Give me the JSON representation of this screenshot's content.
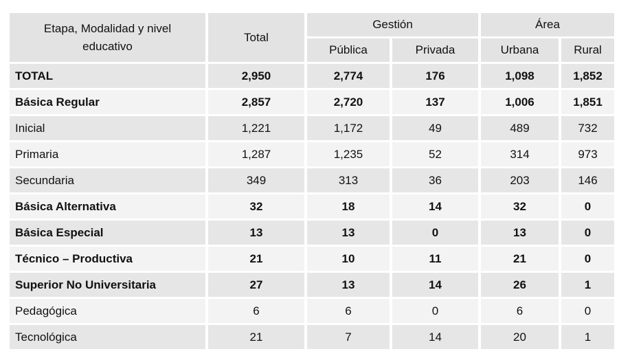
{
  "table": {
    "header": {
      "label": "Etapa, Modalidad y nivel educativo",
      "total": "Total",
      "gestion": "Gestión",
      "area": "Área",
      "sub": [
        "Pública",
        "Privada",
        "Urbana",
        "Rural"
      ]
    },
    "rows": [
      {
        "cells": [
          "TOTAL",
          "2,950",
          "2,774",
          "176",
          "1,098",
          "1,852"
        ],
        "bold": true
      },
      {
        "cells": [
          "Básica Regular",
          "2,857",
          "2,720",
          "137",
          "1,006",
          "1,851"
        ],
        "bold": true
      },
      {
        "cells": [
          "Inicial",
          "1,221",
          "1,172",
          "49",
          "489",
          "732"
        ],
        "bold": false
      },
      {
        "cells": [
          "Primaria",
          "1,287",
          "1,235",
          "52",
          "314",
          "973"
        ],
        "bold": false
      },
      {
        "cells": [
          "Secundaria",
          "349",
          "313",
          "36",
          "203",
          "146"
        ],
        "bold": false
      },
      {
        "cells": [
          "Básica Alternativa",
          "32",
          "18",
          "14",
          "32",
          "0"
        ],
        "bold": true
      },
      {
        "cells": [
          "Básica Especial",
          "13",
          "13",
          "0",
          "13",
          "0"
        ],
        "bold": true
      },
      {
        "cells": [
          "Técnico – Productiva",
          "21",
          "10",
          "11",
          "21",
          "0"
        ],
        "bold": true
      },
      {
        "cells": [
          "Superior No Universitaria",
          "27",
          "13",
          "14",
          "26",
          "1"
        ],
        "bold": true
      },
      {
        "cells": [
          "Pedagógica",
          "6",
          "6",
          "0",
          "6",
          "0"
        ],
        "bold": false
      },
      {
        "cells": [
          "Tecnológica",
          "21",
          "7",
          "14",
          "20",
          "1"
        ],
        "bold": false
      }
    ]
  }
}
